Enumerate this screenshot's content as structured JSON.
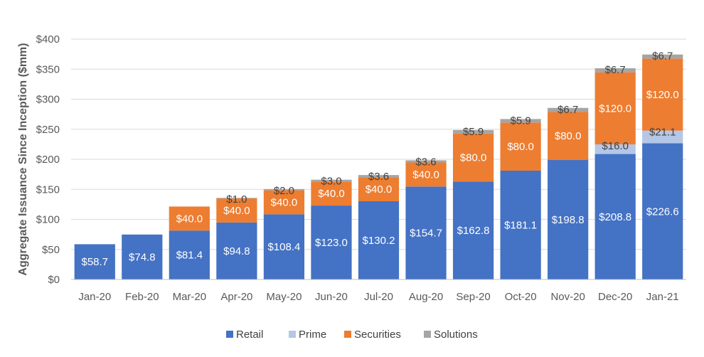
{
  "chart_data": {
    "type": "bar",
    "stacked": true,
    "title": "",
    "xlabel": "",
    "ylabel": "Aggregate Issuance Since Inception ($mm)",
    "ylim": [
      0,
      400
    ],
    "yticks": [
      0,
      50,
      100,
      150,
      200,
      250,
      300,
      350,
      400
    ],
    "ytick_labels": [
      "$0",
      "$50",
      "$100",
      "$150",
      "$200",
      "$250",
      "$300",
      "$350",
      "$400"
    ],
    "grid": true,
    "legend_position": "bottom",
    "categories": [
      "Jan-20",
      "Feb-20",
      "Mar-20",
      "Apr-20",
      "May-20",
      "Jun-20",
      "Jul-20",
      "Aug-20",
      "Sep-20",
      "Oct-20",
      "Nov-20",
      "Dec-20",
      "Jan-21"
    ],
    "series": [
      {
        "name": "Retail",
        "color": "#4472C4",
        "label_color": "#ffffff",
        "values": [
          58.7,
          74.8,
          81.4,
          94.8,
          108.4,
          123.0,
          130.2,
          154.7,
          162.8,
          181.1,
          198.8,
          208.8,
          226.6
        ],
        "labels": [
          "$58.7",
          "",
          "$81.4",
          "$94.8",
          "$108.4",
          "$123.0",
          "$130.2",
          "$154.7",
          "$162.8",
          "$181.1",
          "$198.8",
          "$208.8",
          "$226.6"
        ]
      },
      {
        "name": "Prime",
        "color": "#B4C7E7",
        "label_color": "#404040",
        "values": [
          0,
          0,
          0,
          0,
          0,
          0,
          0,
          0,
          0,
          0,
          0,
          16.0,
          21.1
        ],
        "labels": [
          "",
          "",
          "",
          "",
          "",
          "",
          "",
          "",
          "",
          "",
          "",
          "$16.0",
          "$21.1"
        ]
      },
      {
        "name": "Securities",
        "color": "#ED7D31",
        "label_color": "#ffffff",
        "values": [
          0,
          0,
          40.0,
          40.0,
          40.0,
          40.0,
          40.0,
          40.0,
          80.0,
          80.0,
          80.0,
          120.0,
          120.0
        ],
        "labels": [
          "",
          "",
          "$40.0",
          "$40.0",
          "$40.0",
          "$40.0",
          "$40.0",
          "$40.0",
          "$80.0",
          "$80.0",
          "$80.0",
          "$120.0",
          "$120.0"
        ]
      },
      {
        "name": "Solutions",
        "color": "#A5A5A5",
        "label_color": "#404040",
        "values": [
          0,
          0,
          0,
          1.0,
          2.0,
          3.0,
          3.6,
          3.6,
          5.9,
          5.9,
          6.7,
          6.7,
          6.7
        ],
        "labels": [
          "",
          "",
          "",
          "$1.0",
          "$2.0",
          "$3.0",
          "$3.6",
          "$3.6",
          "$5.9",
          "$5.9",
          "$6.7",
          "$6.7",
          "$6.7"
        ]
      }
    ],
    "extra_labels": [
      {
        "category_index": 1,
        "text": "$74.8"
      }
    ]
  }
}
